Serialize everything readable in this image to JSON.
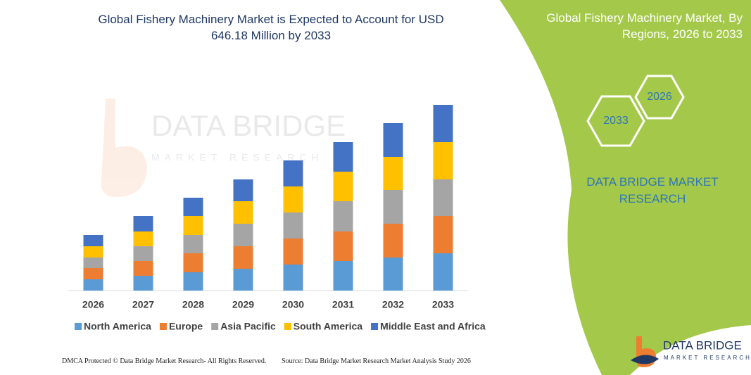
{
  "chart_data": {
    "type": "stacked_bar",
    "title": "Global Fishery Machinery Market is Expected to Account for USD 646.18 Million by 2033",
    "categories": [
      "2026",
      "2027",
      "2028",
      "2029",
      "2030",
      "2031",
      "2032",
      "2033"
    ],
    "series": [
      {
        "name": "North America",
        "color": "#5b9bd5",
        "values": [
          16,
          21,
          26,
          31,
          37,
          42,
          47,
          53
        ]
      },
      {
        "name": "Europe",
        "color": "#ed7d31",
        "values": [
          16,
          21,
          27,
          32,
          37,
          42,
          48,
          53
        ]
      },
      {
        "name": "Asia Pacific",
        "color": "#a5a5a5",
        "values": [
          15,
          21,
          26,
          32,
          37,
          43,
          48,
          52
        ]
      },
      {
        "name": "South America",
        "color": "#ffc000",
        "values": [
          16,
          21,
          27,
          32,
          37,
          42,
          47,
          53
        ]
      },
      {
        "name": "Middle East and Africa",
        "color": "#4472c4",
        "values": [
          16,
          22,
          26,
          31,
          37,
          42,
          48,
          53
        ]
      }
    ],
    "ylim": [
      0,
      270
    ]
  },
  "side_panel": {
    "title": "Global Fishery Machinery Market, By Regions, 2026 to 2033",
    "hexagon_start": "2026",
    "hexagon_end": "2033",
    "brand": "DATA BRIDGE MARKET RESEARCH"
  },
  "watermark": {
    "line1": "DATA BRIDGE",
    "line2": "MARKET RESEARCH"
  },
  "logo": {
    "line1": "DATA BRIDGE",
    "line2": "MARKET RESEARCH"
  },
  "footer": {
    "left": "DMCA Protected © Data Bridge Market Research- All Rights Reserved.",
    "right": "Source: Data Bridge Market Research  Market Analysis Study 2026"
  }
}
